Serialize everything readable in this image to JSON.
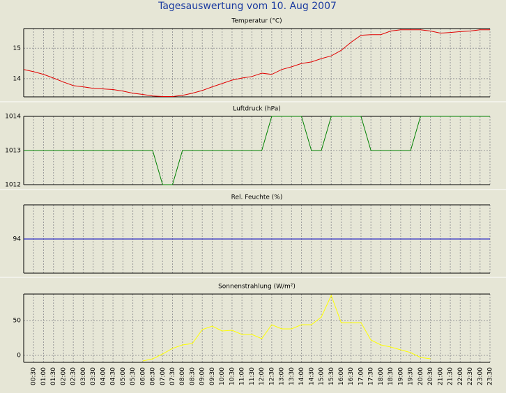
{
  "title": "Tagesauswertung vom 10. Aug 2007",
  "chart_data": [
    {
      "type": "line",
      "title": "Temperatur (°C)",
      "color": "#e00000",
      "ylim": [
        13.4,
        15.65
      ],
      "yticks": [
        14,
        15
      ],
      "grid": true,
      "values": [
        14.3,
        14.23,
        14.14,
        14.02,
        13.89,
        13.77,
        13.73,
        13.68,
        13.66,
        13.64,
        13.59,
        13.52,
        13.48,
        13.43,
        13.41,
        13.41,
        13.45,
        13.52,
        13.61,
        13.73,
        13.84,
        13.95,
        14.02,
        14.07,
        14.18,
        14.14,
        14.3,
        14.39,
        14.5,
        14.55,
        14.66,
        14.75,
        14.93,
        15.2,
        15.43,
        15.45,
        15.45,
        15.57,
        15.61,
        15.61,
        15.61,
        15.57,
        15.5,
        15.52,
        15.55,
        15.57,
        15.61,
        15.61
      ]
    },
    {
      "type": "line",
      "title": "Luftdruck (hPa)",
      "color": "#008000",
      "ylim": [
        1012,
        1014
      ],
      "yticks": [
        1012,
        1013,
        1014
      ],
      "grid": true,
      "values": [
        1013,
        1013,
        1013,
        1013,
        1013,
        1013,
        1013,
        1013,
        1013,
        1013,
        1013,
        1013,
        1013,
        1013,
        1012,
        1012,
        1013,
        1013,
        1013,
        1013,
        1013,
        1013,
        1013,
        1013,
        1013,
        1014,
        1014,
        1014,
        1014,
        1013,
        1013,
        1014,
        1014,
        1014,
        1014,
        1013,
        1013,
        1013,
        1013,
        1013,
        1014,
        1014,
        1014,
        1014,
        1014,
        1014,
        1014,
        1014
      ]
    },
    {
      "type": "line",
      "title": "Rel. Feuchte (%)",
      "color": "#0000c0",
      "ylim": [
        93,
        95
      ],
      "yticks": [
        94
      ],
      "grid": true,
      "values": [
        94,
        94,
        94,
        94,
        94,
        94,
        94,
        94,
        94,
        94,
        94,
        94,
        94,
        94,
        94,
        94,
        94,
        94,
        94,
        94,
        94,
        94,
        94,
        94,
        94,
        94,
        94,
        94,
        94,
        94,
        94,
        94,
        94,
        94,
        94,
        94,
        94,
        94,
        94,
        94,
        94,
        94,
        94,
        94,
        94,
        94,
        94,
        94
      ]
    },
    {
      "type": "line",
      "title": "Sonnenstrahlung (W/m²)",
      "color": "#ffff00",
      "ylim": [
        -10,
        88
      ],
      "yticks": [
        0,
        50
      ],
      "grid": true,
      "values": [
        null,
        null,
        null,
        null,
        null,
        null,
        null,
        null,
        null,
        null,
        null,
        null,
        -8,
        -5,
        2,
        10,
        15,
        17,
        37,
        42,
        35,
        36,
        30,
        30,
        24,
        44,
        38,
        38,
        44,
        44,
        55,
        86,
        47,
        47,
        47,
        22,
        15,
        12,
        8,
        4,
        -3,
        -5,
        null,
        null,
        null,
        null,
        null,
        null
      ],
      "categories": [
        null,
        "00:30",
        "01:00",
        "01:30",
        "02:00",
        "02:30",
        "03:00",
        "03:30",
        "04:00",
        "04:30",
        "05:00",
        "05:30",
        "06:00",
        "06:30",
        "07:00",
        "07:30",
        "08:00",
        "08:30",
        "09:00",
        "09:30",
        "10:00",
        "10:30",
        "11:00",
        "11:30",
        "12:00",
        "12:30",
        "13:00",
        "13:30",
        "14:00",
        "14:30",
        "15:00",
        "15:30",
        "16:00",
        "16:30",
        "17:00",
        "17:30",
        "18:00",
        "18:30",
        "19:00",
        "19:30",
        "20:00",
        "20:30",
        "21:00",
        "21:30",
        "22:00",
        "22:30",
        "23:00",
        "23:30"
      ]
    }
  ]
}
